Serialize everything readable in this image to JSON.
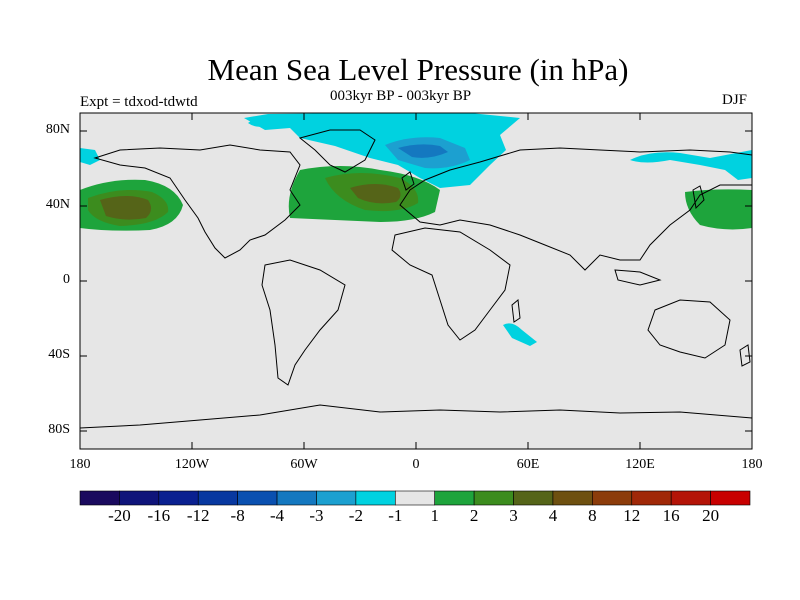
{
  "title": "Mean Sea Level Pressure (in hPa)",
  "subtitle": "003kyr BP - 003kyr BP",
  "expt_label": "Expt = tdxod-tdwtd",
  "season_label": "DJF",
  "lat_ticks": [
    "80N",
    "40N",
    "0",
    "40S",
    "80S"
  ],
  "lon_ticks": [
    "180",
    "120W",
    "60W",
    "0",
    "60E",
    "120E",
    "180"
  ],
  "background_color": "#e6e6e6",
  "colorbar": {
    "colors": [
      "#1a0a5e",
      "#0f147a",
      "#0a2090",
      "#0838a0",
      "#0a50b0",
      "#1478c0",
      "#1ca0d0",
      "#00d2e0",
      "#e6e6e6",
      "#1ea43c",
      "#3c8c1e",
      "#556418",
      "#6e5010",
      "#8c3c0a",
      "#a02808",
      "#b41408",
      "#c80000"
    ],
    "labels": [
      "-20",
      "-16",
      "-12",
      "-8",
      "-4",
      "-3",
      "-2",
      "-1",
      "1",
      "2",
      "3",
      "4",
      "8",
      "12",
      "16",
      "20"
    ]
  }
}
